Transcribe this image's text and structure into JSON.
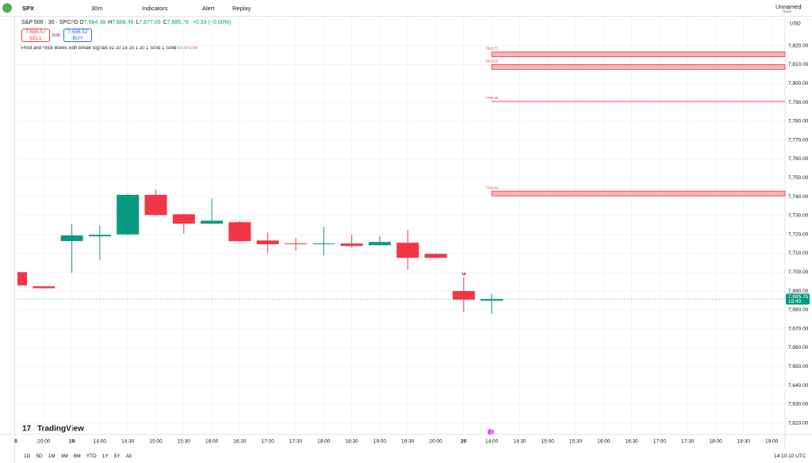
{
  "toolbar": {
    "symbol": "SPX",
    "interval": "30m",
    "indicators": "Indicators",
    "alert": "Alert",
    "replay": "Replay",
    "layout_name": "Unnamed",
    "layout_status": "Save"
  },
  "trade": {
    "sell_price": "7,686.52",
    "sell": "SELL",
    "spread": "0.00",
    "buy_price": "7,686.52",
    "buy": "BUY"
  },
  "legend": {
    "symbol": "S&P 500 · 30 · SPCFD",
    "items": [
      {
        "key": "O",
        "value": "7,684.88"
      },
      {
        "key": "H",
        "value": "7,688.46"
      },
      {
        "key": "L",
        "value": "7,677.85"
      },
      {
        "key": "C",
        "value": "7,685.76"
      }
    ],
    "change": "+0.33 (+0.00%)"
  },
  "indicator": {
    "name": "Pivot and Wick Boxes with Break Signals v2 10 15 15 1 20 1 Solid 1 Solid",
    "values": [
      "0.00",
      "0.00"
    ]
  },
  "chart_data": {
    "type": "candlestick",
    "categories": [
      "0",
      "20:00",
      "19",
      "14:00",
      "14:30",
      "15:00",
      "15:30",
      "16:00",
      "16:30",
      "17:00",
      "17:30",
      "18:00",
      "18:30",
      "19:00",
      "19:30",
      "20:00",
      "20",
      "14:00",
      "14:30",
      "15:00",
      "15:30",
      "16:00",
      "16:30",
      "17:00",
      "17:30",
      "18:00",
      "18:30",
      "19:00"
    ],
    "open": [
      7700,
      7692.5,
      7716.5,
      7719,
      7720,
      7741,
      7730.7,
      7725.7,
      7726.5,
      7716.8,
      7715.2,
      7714.8,
      7715.2,
      7714.3,
      7715.6,
      7709.7,
      7690,
      7684.88,
      null,
      null,
      null,
      null,
      null,
      null,
      null,
      null,
      null,
      null
    ],
    "high": [
      7700,
      7692.5,
      7725.7,
      7724.8,
      7741.5,
      7743.7,
      7731,
      7739.1,
      7727,
      7721,
      7718.1,
      7724,
      7719.8,
      7719,
      7722.3,
      7710,
      7697.1,
      7688.46,
      null,
      null,
      null,
      null,
      null,
      null,
      null,
      null,
      null,
      null
    ],
    "low": [
      7693,
      7691.3,
      7699.7,
      7706.4,
      7719.5,
      7730,
      7720.6,
      7725.5,
      7716,
      7710.1,
      7711.4,
      7708.9,
      7713.1,
      7714,
      7701.3,
      7707.5,
      7678.7,
      7677.85,
      null,
      null,
      null,
      null,
      null,
      null,
      null,
      null,
      null,
      null
    ],
    "close": [
      7693,
      7691.5,
      7719.5,
      7719.8,
      7741,
      7730.3,
      7725.7,
      7727.3,
      7716.4,
      7714.8,
      7714.8,
      7715.2,
      7713.9,
      7716,
      7707.6,
      7707.6,
      7685.43,
      7685.76,
      null,
      null,
      null,
      null,
      null,
      null,
      null,
      null,
      null,
      null
    ],
    "up_color": "#089981",
    "down_color": "#f23645",
    "ylim": [
      7614,
      7835
    ],
    "yticks": [
      {
        "value": 7620,
        "label": "7,620.00"
      },
      {
        "value": 7630,
        "label": "7,630.00"
      },
      {
        "value": 7640,
        "label": "7,640.00"
      },
      {
        "value": 7650,
        "label": "7,650.00"
      },
      {
        "value": 7660,
        "label": "7,660.00"
      },
      {
        "value": 7670,
        "label": "7,670.00"
      },
      {
        "value": 7680,
        "label": "7,680.00"
      },
      {
        "value": 7690,
        "label": "7,690.00"
      },
      {
        "value": 7700,
        "label": "7,700.00"
      },
      {
        "value": 7710,
        "label": "7,710.00"
      },
      {
        "value": 7720,
        "label": "7,720.00"
      },
      {
        "value": 7730,
        "label": "7,730.00"
      },
      {
        "value": 7740,
        "label": "7,740.00"
      },
      {
        "value": 7750,
        "label": "7,750.00"
      },
      {
        "value": 7760,
        "label": "7,760.00"
      },
      {
        "value": 7770,
        "label": "7,770.00"
      },
      {
        "value": 7780,
        "label": "7,780.00"
      },
      {
        "value": 7790,
        "label": "7,790.00"
      },
      {
        "value": 7800,
        "label": "7,800.00"
      },
      {
        "value": 7810,
        "label": "7,810.00"
      },
      {
        "value": 7820,
        "label": "7,820.00"
      }
    ],
    "currency": "USD",
    "grid": true,
    "levels": [
      {
        "value": 7816.71,
        "style": "box"
      },
      {
        "value": 7810.02,
        "style": "box"
      },
      {
        "value": 7790.49,
        "style": "line"
      },
      {
        "value": 7742.94,
        "style": "box"
      }
    ],
    "level_color": "#f23645",
    "last_price": {
      "value": 7685.76,
      "label": "7,685.76",
      "time": "19:49"
    }
  },
  "footer": {
    "ranges": [
      "1D",
      "5D",
      "1M",
      "3M",
      "6M",
      "YTD",
      "1Y",
      "5Y",
      "All"
    ],
    "clock": "14:10:10 UTC",
    "brand": "TradingView"
  }
}
